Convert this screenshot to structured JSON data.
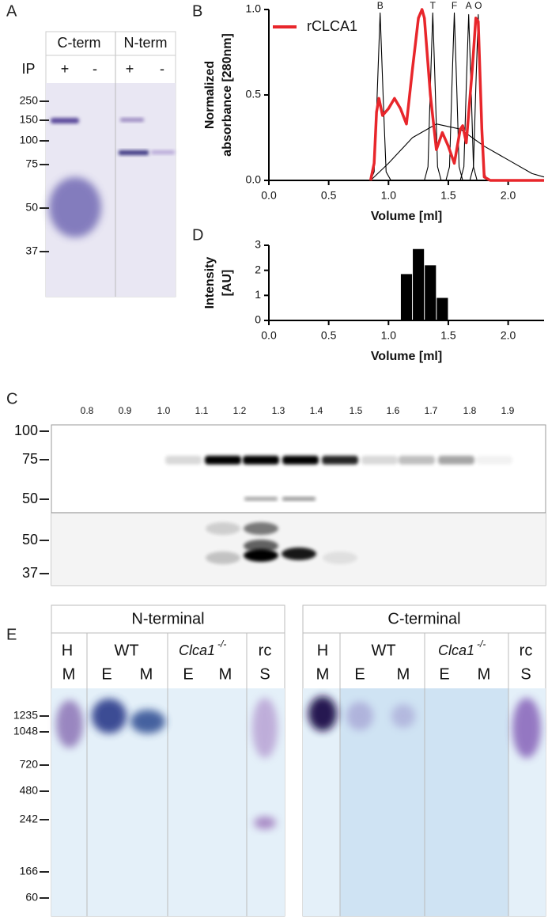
{
  "panel_labels": [
    "A",
    "B",
    "C",
    "D",
    "E"
  ],
  "gel_a": {
    "columns": [
      "C-term",
      "N-term"
    ],
    "ip_label": "IP",
    "lanes": [
      "+",
      "-",
      "+",
      "-"
    ],
    "markers": [
      "250",
      "150",
      "100",
      "75",
      "50",
      "37"
    ]
  },
  "chart_data": [
    {
      "type": "line",
      "xlabel": "Volume [ml]",
      "ylabel": [
        "Normalized",
        "absorbance [280nm]"
      ],
      "xlim": [
        0,
        2.3
      ],
      "ylim": [
        0,
        1
      ],
      "xticks": [
        {
          "value": 0,
          "label": "0.0"
        },
        0.5,
        {
          "value": 1,
          "label": "1.0"
        },
        1.5,
        {
          "value": 2,
          "label": "2.0"
        }
      ],
      "yticks": [
        {
          "value": 0,
          "label": "0.0"
        },
        0.5,
        {
          "value": 1,
          "label": "1.0"
        }
      ],
      "legend": "upper left",
      "series": [
        {
          "name": "rCLCA1",
          "color": "#e8262b",
          "x": [
            0.85,
            0.88,
            0.9,
            0.92,
            0.95,
            1.0,
            1.05,
            1.1,
            1.15,
            1.2,
            1.25,
            1.28,
            1.3,
            1.35,
            1.4,
            1.45,
            1.5,
            1.55,
            1.6,
            1.62,
            1.65,
            1.7,
            1.73,
            1.75,
            1.78,
            1.8,
            1.85,
            2.3
          ],
          "values": [
            0,
            0.1,
            0.4,
            0.48,
            0.38,
            0.42,
            0.48,
            0.42,
            0.33,
            0.65,
            0.95,
            1.0,
            0.95,
            0.5,
            0.18,
            0.28,
            0.2,
            0.1,
            0.3,
            0.32,
            0.22,
            0.65,
            0.95,
            0.93,
            0.3,
            0.02,
            0,
            0
          ]
        }
      ],
      "standards": [
        {
          "label": "B",
          "color": "#000000",
          "x": [
            0.85,
            0.88,
            0.9,
            0.93,
            0.96,
            0.98,
            1.02
          ],
          "values": [
            0,
            0.05,
            0.4,
            0.98,
            0.4,
            0.05,
            0
          ]
        },
        {
          "label": "T",
          "color": "#000000",
          "x": [
            1.3,
            1.33,
            1.35,
            1.37,
            1.39,
            1.41,
            1.44
          ],
          "values": [
            0,
            0.08,
            0.55,
            0.98,
            0.55,
            0.08,
            0
          ]
        },
        {
          "label": "F",
          "color": "#000000",
          "x": [
            1.48,
            1.51,
            1.53,
            1.55,
            1.57,
            1.59,
            1.62
          ],
          "values": [
            0,
            0.08,
            0.55,
            0.98,
            0.55,
            0.08,
            0
          ]
        },
        {
          "label": "A",
          "color": "#000000",
          "x": [
            1.6,
            1.63,
            1.65,
            1.67,
            1.69,
            1.71,
            1.74
          ],
          "values": [
            0,
            0.08,
            0.55,
            0.97,
            0.55,
            0.08,
            0
          ]
        },
        {
          "label": "O",
          "color": "#000000",
          "x": [
            1.68,
            1.71,
            1.73,
            1.75,
            1.77,
            1.79,
            1.82
          ],
          "values": [
            0,
            0.08,
            0.55,
            0.97,
            0.55,
            0.08,
            0
          ]
        },
        {
          "color": "#000000",
          "x": [
            0.85,
            1.0,
            1.2,
            1.4,
            1.6,
            1.8,
            2.0,
            2.2,
            2.3
          ],
          "values": [
            0,
            0.1,
            0.25,
            0.33,
            0.3,
            0.2,
            0.12,
            0.04,
            0.02
          ]
        }
      ]
    },
    {
      "type": "bar",
      "xlabel": "Volume [ml]",
      "ylabel": [
        "Intensity",
        "[AU]"
      ],
      "color": "#000000",
      "xlim": [
        0,
        2.3
      ],
      "ylim": [
        0,
        3
      ],
      "xticks": [
        {
          "value": 0,
          "label": "0.0"
        },
        0.5,
        {
          "value": 1,
          "label": "1.0"
        },
        1.5,
        {
          "value": 2,
          "label": "2.0"
        }
      ],
      "yticks": [
        0,
        1,
        2,
        3
      ],
      "x": [
        1.15,
        1.25,
        1.35,
        1.45
      ],
      "values": [
        1.85,
        2.85,
        2.2,
        0.9
      ]
    }
  ],
  "blot_c": {
    "fractions": [
      "0.8",
      "0.9",
      "1.0",
      "1.1",
      "1.2",
      "1.3",
      "1.4",
      "1.5",
      "1.6",
      "1.7",
      "1.8",
      "1.9"
    ],
    "markers_top": [
      "100",
      "75",
      "50"
    ],
    "markers_bottom": [
      "50",
      "37"
    ]
  },
  "native_e": {
    "panels": [
      {
        "title": "N-terminal",
        "groups": [
          {
            "label": "H",
            "lanes": [
              "M"
            ]
          },
          {
            "label": "WT",
            "lanes": [
              "E",
              "M"
            ]
          },
          {
            "label": "Clca1",
            "sup": "-/-",
            "lanes": [
              "E",
              "M"
            ]
          },
          {
            "label": "rc",
            "lanes": [
              "S"
            ]
          }
        ]
      },
      {
        "title": "C-terminal",
        "groups": [
          {
            "label": "H",
            "lanes": [
              "M"
            ]
          },
          {
            "label": "WT",
            "lanes": [
              "E",
              "M"
            ]
          },
          {
            "label": "Clca1",
            "sup": "-/-",
            "lanes": [
              "E",
              "M"
            ]
          },
          {
            "label": "rc",
            "lanes": [
              "S"
            ]
          }
        ]
      }
    ],
    "markers": [
      "1235",
      "1048",
      "720",
      "480",
      "242",
      "166",
      "60"
    ]
  }
}
